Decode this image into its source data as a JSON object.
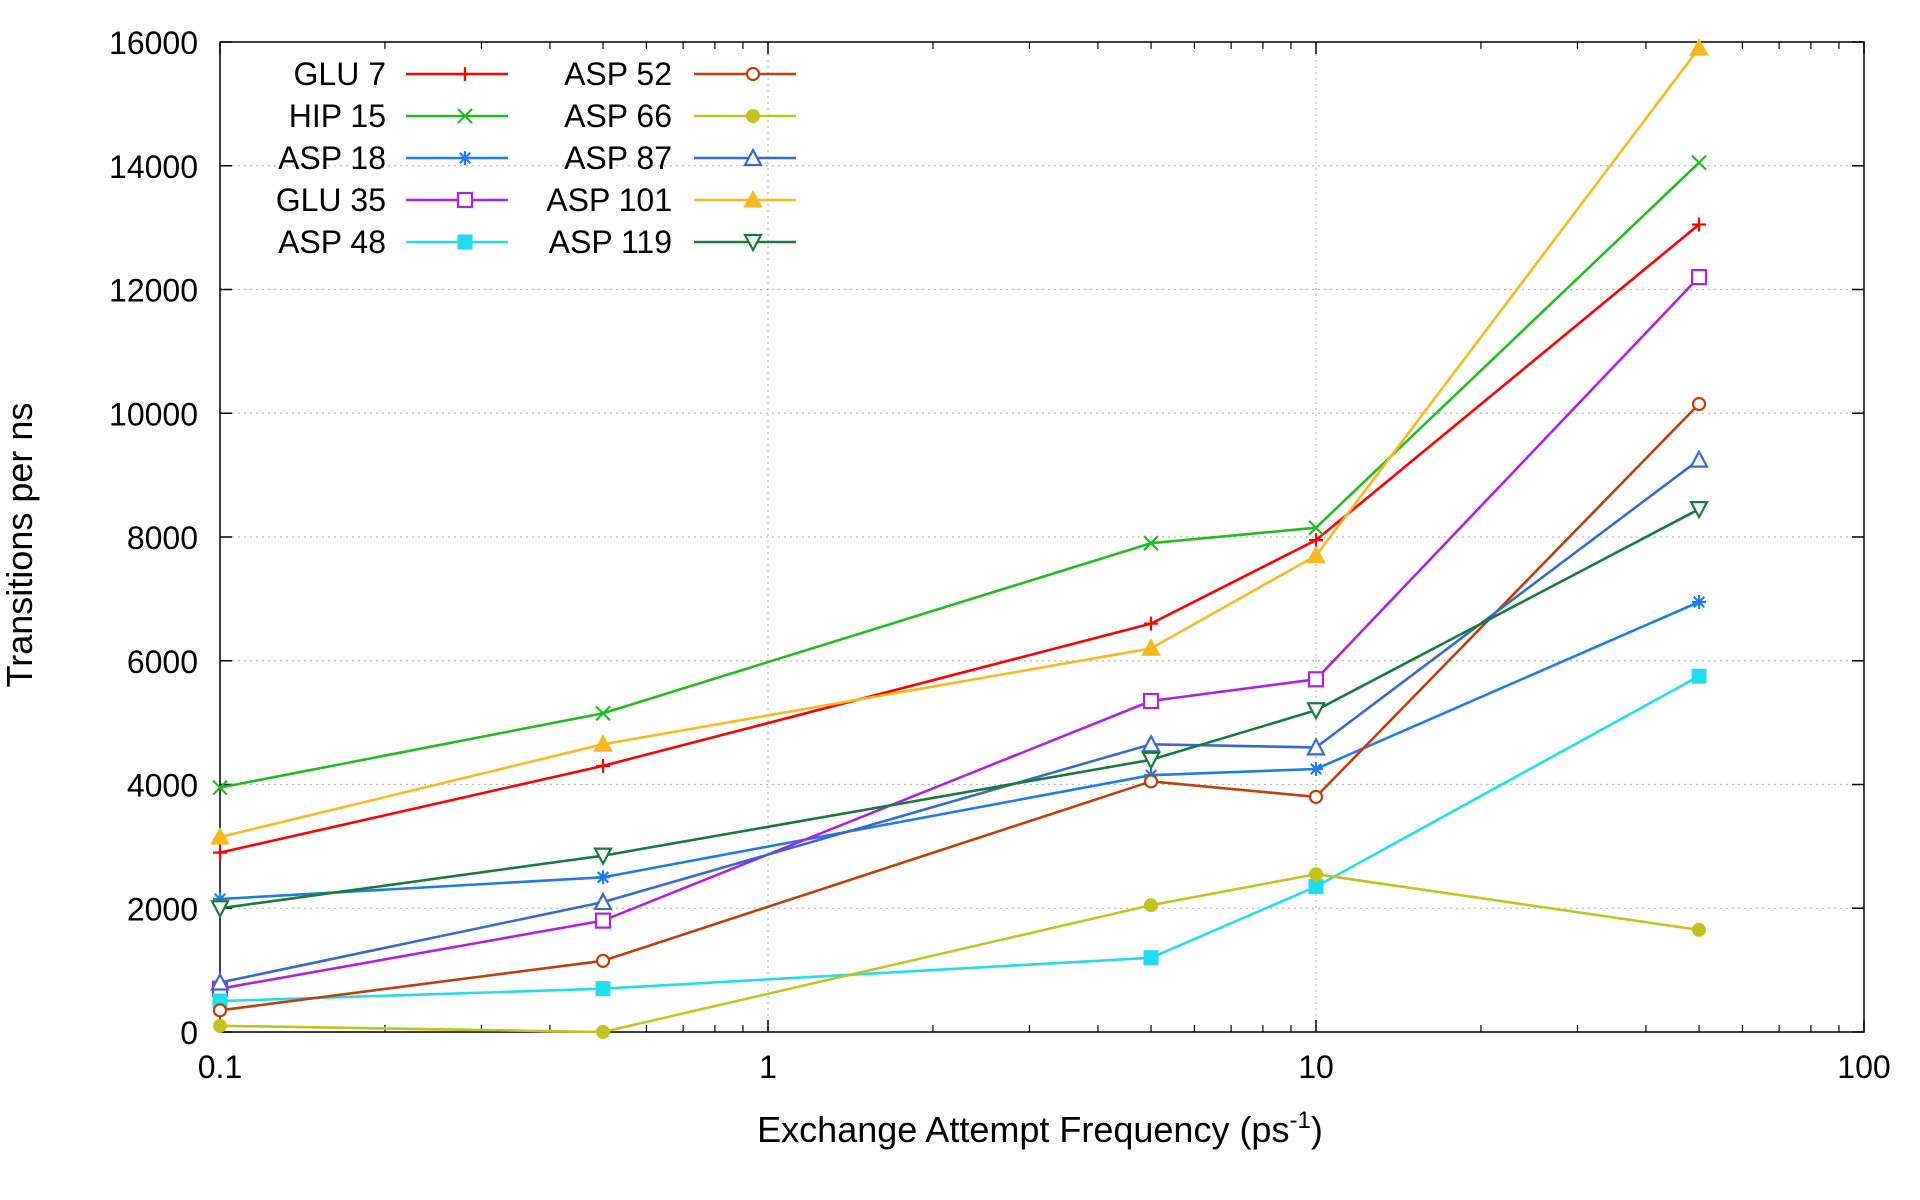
{
  "chart_data": {
    "type": "line",
    "xscale": "log",
    "title": "",
    "xlabel": "Exchange Attempt Frequency (ps",
    "xlabel_sup": "-1",
    "xlabel_end": ")",
    "ylabel": "Transitions per ns",
    "xlim": [
      0.1,
      100
    ],
    "ylim": [
      0,
      16000
    ],
    "grid": true,
    "legend_position": "top-left",
    "x_ticks": [
      {
        "value": 0.1,
        "label": "0.1"
      },
      {
        "value": 1,
        "label": "1"
      },
      {
        "value": 10,
        "label": "10"
      },
      {
        "value": 100,
        "label": "100"
      }
    ],
    "y_ticks": [
      {
        "value": 0,
        "label": "0"
      },
      {
        "value": 2000,
        "label": "2000"
      },
      {
        "value": 4000,
        "label": "4000"
      },
      {
        "value": 6000,
        "label": "6000"
      },
      {
        "value": 8000,
        "label": "8000"
      },
      {
        "value": 10000,
        "label": "10000"
      },
      {
        "value": 12000,
        "label": "12000"
      },
      {
        "value": 14000,
        "label": "14000"
      },
      {
        "value": 16000,
        "label": "16000"
      }
    ],
    "x": [
      0.1,
      0.5,
      5,
      10,
      50
    ],
    "series": [
      {
        "name": "GLU 7",
        "color": "#ff0000",
        "marker": "plus",
        "values": [
          2900,
          4300,
          6600,
          7950,
          13050
        ]
      },
      {
        "name": "HIP 15",
        "color": "#22bb22",
        "marker": "cross",
        "values": [
          3950,
          5150,
          7900,
          8150,
          14050
        ]
      },
      {
        "name": "ASP 18",
        "color": "#1f7be8",
        "marker": "star",
        "values": [
          2150,
          2500,
          4150,
          4250,
          6950
        ]
      },
      {
        "name": "GLU 35",
        "color": "#b020e0",
        "marker": "square-open",
        "values": [
          700,
          1800,
          5350,
          5700,
          12200
        ]
      },
      {
        "name": "ASP 48",
        "color": "#22ddee",
        "marker": "square-filled",
        "values": [
          500,
          700,
          1200,
          2350,
          5750
        ]
      },
      {
        "name": "ASP 52",
        "color": "#c03d0c",
        "marker": "circle-open",
        "values": [
          350,
          1150,
          4050,
          3800,
          10150
        ]
      },
      {
        "name": "ASP 66",
        "color": "#c3c21f",
        "marker": "circle-filled",
        "values": [
          100,
          0,
          2050,
          2550,
          1650
        ]
      },
      {
        "name": "ASP 87",
        "color": "#3a68d0",
        "marker": "triangle-open",
        "values": [
          800,
          2100,
          4650,
          4600,
          9250
        ]
      },
      {
        "name": "ASP 101",
        "color": "#f8b820",
        "marker": "triangle-filled",
        "values": [
          3150,
          4650,
          6200,
          7700,
          15900
        ]
      },
      {
        "name": "ASP 119",
        "color": "#1a7a3e",
        "marker": "triangle-down-open",
        "values": [
          2000,
          2850,
          4400,
          5200,
          8450
        ]
      }
    ]
  }
}
